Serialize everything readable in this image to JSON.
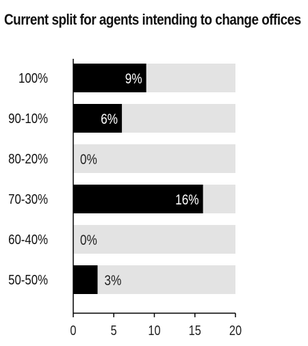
{
  "chart_data": {
    "type": "bar",
    "orientation": "horizontal",
    "title": "Current split for agents intending to change offices",
    "categories": [
      "100%",
      "90-10%",
      "80-20%",
      "70-30%",
      "60-40%",
      "50-50%"
    ],
    "values": [
      9,
      6,
      0,
      16,
      0,
      3
    ],
    "data_labels": [
      "9%",
      "6%",
      "0%",
      "16%",
      "0%",
      "3%"
    ],
    "xlim": [
      0,
      20
    ],
    "xticks": [
      "0",
      "5",
      "10",
      "15",
      "20"
    ],
    "xtick_values": [
      0,
      5,
      10,
      15,
      20
    ],
    "xlabel": "",
    "ylabel": "",
    "grid": false,
    "legend": "none",
    "colors": {
      "bar": "#000000",
      "track": "#e3e3e3",
      "axis": "#000000",
      "label_on_bar": "#ffffff",
      "label_off_bar": "#222222"
    }
  }
}
